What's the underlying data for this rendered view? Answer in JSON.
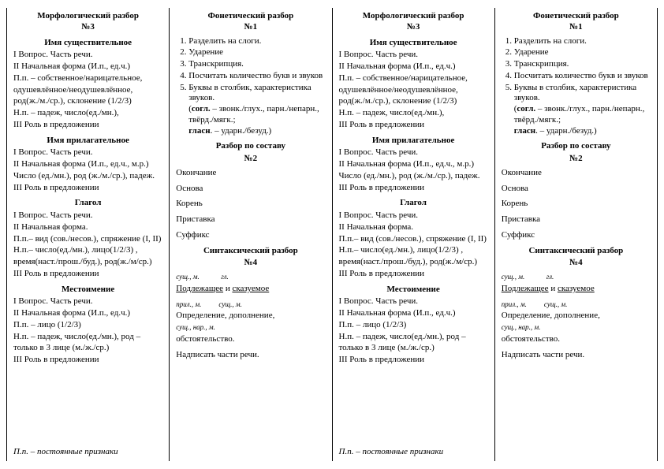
{
  "morph": {
    "title": "Морфологический разбор",
    "num": "№3",
    "noun": {
      "head": "Имя существительное",
      "l1": "I Вопрос. Часть речи.",
      "l2": "II Начальная форма (И.п., ед.ч.)",
      "l3": "П.п. – собственное/нарицательное,",
      "l4": "одушевлённое/неодушевлённое,",
      "l5": "род(ж./м./ср.), склонение (1/2/3)",
      "l6": "Н.п. – падеж, число(ед./мн.),",
      "l7": "III Роль в предложении"
    },
    "adj": {
      "head": "Имя прилагательное",
      "l1": "I Вопрос. Часть речи.",
      "l2": "II Начальная форма (И.п., ед.ч., м.р.)",
      "l3": "Число (ед./мн.), род (ж./м./ср.), падеж.",
      "l4": "III Роль в предложении"
    },
    "verb": {
      "head": "Глагол",
      "l1": "I Вопрос. Часть речи.",
      "l2": "II  Начальная форма.",
      "l3": "П.п.– вид (сов./несов.), спряжение (I, II)",
      "l4": "Н.п.– число(ед./мн.), лицо(1/2/3) ,",
      "l5": "время(наст./прош./буд.), род(ж./м/ср.)",
      "l6": "III Роль в предложении"
    },
    "pron": {
      "head": "Местоимение",
      "l1": "I Вопрос. Часть речи.",
      "l2": "II Начальная форма (И.п., ед.ч.)",
      "l3": "П.п. – лицо (1/2/3)",
      "l4": "Н.п. – падеж, число(ед./мн.), род –",
      "l5": "только в 3 лице (м./ж./ср.)",
      "l6": "III Роль в предложении"
    },
    "note": "П.п. – постоянные признаки"
  },
  "phon": {
    "title": "Фонетический разбор",
    "num": "№1",
    "s1": "Разделить на слоги.",
    "s2": "Ударение",
    "s3": "Транскрипция.",
    "s4": "Посчитать количество букв и звуков",
    "s5a": "Буквы в столбик, характеристика звуков.",
    "s5b1": "(согл. – звонк./глух., парн./непарн., твёрд./мягк.;",
    "s5b2": "гласн. – ударн./безуд.)",
    "sogl": "согл.",
    "glas": "гласн"
  },
  "comp": {
    "title": "Разбор по составу",
    "num": "№2",
    "p1": "Окончание",
    "p2": "Основа",
    "p3": "Корень",
    "p4": "Приставка",
    "p5": "Суффикс"
  },
  "synt": {
    "title": "Синтаксический разбор",
    "num": "№4",
    "t1": "сущ., м.",
    "t2": "гл.",
    "subj": "Подлежащее",
    "and": " и ",
    "pred": "сказуемое",
    "t3": "прил., м.",
    "t4": "сущ., м.",
    "l2": "Определение, дополнение,",
    "t5": "сущ., нар., м.",
    "l3": "обстоятельство.",
    "l4": "Надписать части речи."
  }
}
